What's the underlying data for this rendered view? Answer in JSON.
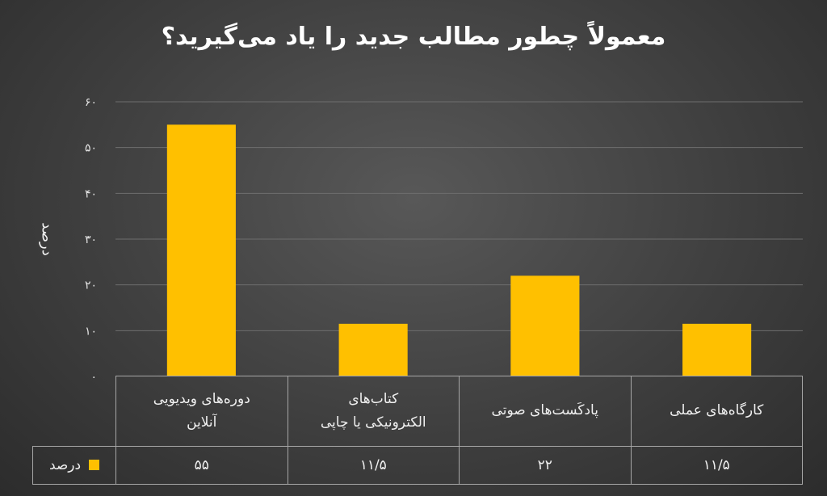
{
  "colors": {
    "bar": "#ffc000",
    "grid": "#6e6e6e"
  },
  "chart_data": {
    "type": "bar",
    "title": "معمولاً چطور مطالب جدید را یاد می‌گیرید؟",
    "ylabel": "درصد",
    "xlabel": "",
    "ylim": [
      0,
      60
    ],
    "yticks": [
      0,
      10,
      20,
      30,
      40,
      50,
      60
    ],
    "ytick_labels": [
      "۰",
      "۱۰",
      "۲۰",
      "۳۰",
      "۴۰",
      "۵۰",
      "۶۰"
    ],
    "grid": true,
    "legend_position": "bottom-left",
    "categories": [
      "دوره‌های ویدیویی\nآنلاین",
      "کتاب‌های\nالکترونیکی یا چاپی",
      "پادکَست‌های صوتی",
      "کارگاه‌های عملی"
    ],
    "series": [
      {
        "name": "درصد",
        "values": [
          55,
          11.5,
          22,
          11.5
        ],
        "value_labels": [
          "۵۵",
          "۱۱/۵",
          "۲۲",
          "۱۱/۵"
        ]
      }
    ]
  }
}
